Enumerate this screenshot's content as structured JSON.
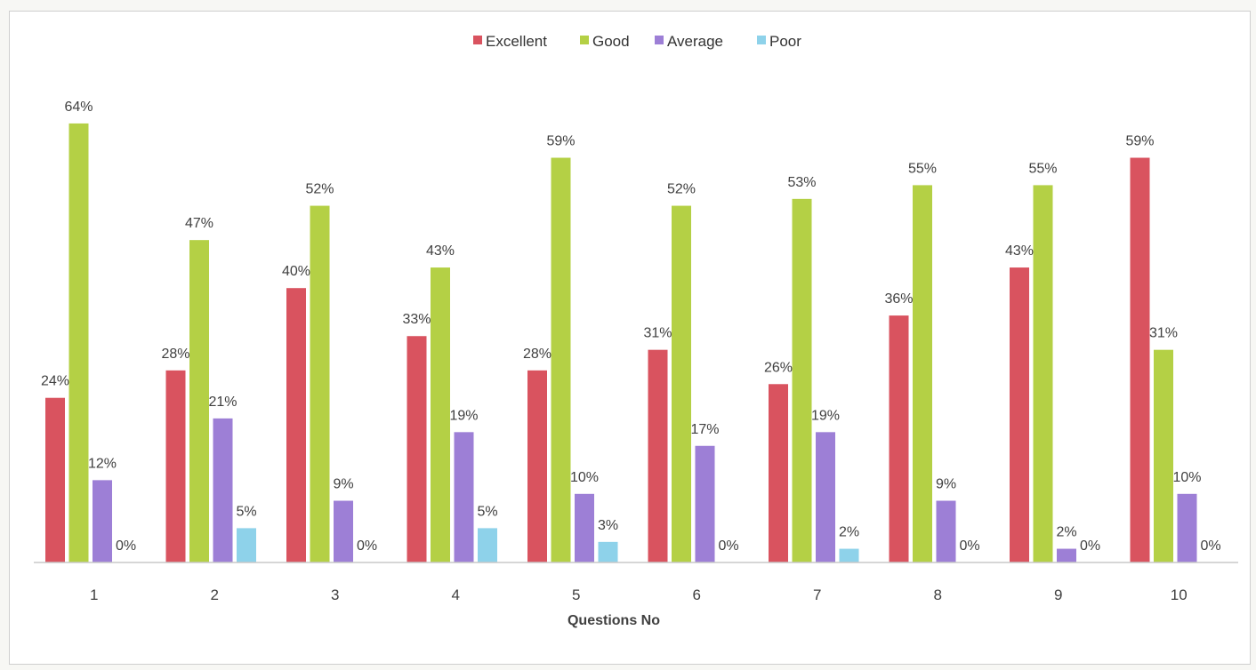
{
  "chart_data": {
    "type": "bar",
    "title": "",
    "xlabel": "Questions No",
    "ylabel": "",
    "ylim": [
      0,
      70
    ],
    "grid": false,
    "legend": "top-center",
    "categories": [
      "1",
      "2",
      "3",
      "4",
      "5",
      "6",
      "7",
      "8",
      "9",
      "10"
    ],
    "series": [
      {
        "name": "Excellent",
        "color": "#d9535f",
        "values": [
          24,
          28,
          40,
          33,
          28,
          31,
          26,
          36,
          43,
          59
        ],
        "labels": [
          "24%",
          "28%",
          "40%",
          "33%",
          "28%",
          "31%",
          "26%",
          "36%",
          "43%",
          "59%"
        ]
      },
      {
        "name": "Good",
        "color": "#b4d045",
        "values": [
          64,
          47,
          52,
          43,
          59,
          52,
          53,
          55,
          55,
          31
        ],
        "labels": [
          "64%",
          "47%",
          "52%",
          "43%",
          "59%",
          "52%",
          "53%",
          "55%",
          "55%",
          "31%"
        ]
      },
      {
        "name": "Average",
        "color": "#9d7fd6",
        "values": [
          12,
          21,
          9,
          19,
          10,
          17,
          19,
          9,
          2,
          10
        ],
        "labels": [
          "12%",
          "21%",
          "9%",
          "19%",
          "10%",
          "17%",
          "19%",
          "9%",
          "2%",
          "10%"
        ]
      },
      {
        "name": "Poor",
        "color": "#8ed2ea",
        "values": [
          0,
          5,
          0,
          5,
          3,
          0,
          2,
          0,
          0,
          0
        ],
        "labels": [
          "0%",
          "5%",
          "0%",
          "5%",
          "3%",
          "0%",
          "2%",
          "0%",
          "0%",
          "0%"
        ]
      }
    ]
  }
}
